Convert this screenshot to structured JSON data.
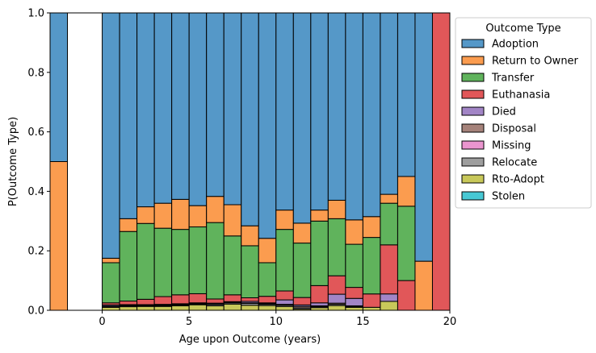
{
  "chart_data": {
    "type": "bar",
    "stacked": true,
    "normalized": true,
    "xlabel": "Age upon Outcome (years)",
    "ylabel": "P(Outcome Type)",
    "xlim": [
      -3,
      20
    ],
    "ylim": [
      0,
      1
    ],
    "xticks": [
      0,
      5,
      10,
      15,
      20
    ],
    "yticks": [
      0.0,
      0.2,
      0.4,
      0.6,
      0.8,
      1.0
    ],
    "x_tick_labels": [
      "0",
      "5",
      "10",
      "15",
      "20"
    ],
    "y_tick_labels": [
      "0.0",
      "0.2",
      "0.4",
      "0.6",
      "0.8",
      "1.0"
    ],
    "grid": false,
    "legend_title": "Outcome Type",
    "legend_position": "outside-right",
    "series_colors": [
      "#5598c8",
      "#fb9c4f",
      "#60b35c",
      "#e15759",
      "#a285c6",
      "#a5827a",
      "#ea95cf",
      "#9e9e9e",
      "#c8c85a",
      "#47c8d4"
    ],
    "bins": [
      {
        "x0": -3,
        "x1": -2
      },
      {
        "x0": 0,
        "x1": 1
      },
      {
        "x0": 1,
        "x1": 2
      },
      {
        "x0": 2,
        "x1": 3
      },
      {
        "x0": 3,
        "x1": 4
      },
      {
        "x0": 4,
        "x1": 5
      },
      {
        "x0": 5,
        "x1": 6
      },
      {
        "x0": 6,
        "x1": 7
      },
      {
        "x0": 7,
        "x1": 8
      },
      {
        "x0": 8,
        "x1": 9
      },
      {
        "x0": 9,
        "x1": 10
      },
      {
        "x0": 10,
        "x1": 11
      },
      {
        "x0": 11,
        "x1": 12
      },
      {
        "x0": 12,
        "x1": 13
      },
      {
        "x0": 13,
        "x1": 14
      },
      {
        "x0": 14,
        "x1": 15
      },
      {
        "x0": 15,
        "x1": 16
      },
      {
        "x0": 16,
        "x1": 17
      },
      {
        "x0": 17,
        "x1": 18
      },
      {
        "x0": 18,
        "x1": 19
      },
      {
        "x0": 19,
        "x1": 20
      }
    ],
    "series": [
      {
        "name": "Adoption",
        "values": [
          0.5,
          0.825,
          0.692,
          0.652,
          0.64,
          0.627,
          0.698,
          0.617,
          0.645,
          0.716,
          0.758,
          0.663,
          0.707,
          0.663,
          0.63,
          0.696,
          0.685,
          0.61,
          0.55,
          0.835,
          0.0
        ]
      },
      {
        "name": "Return to Owner",
        "values": [
          0.5,
          0.015,
          0.043,
          0.056,
          0.084,
          0.101,
          0.077,
          0.088,
          0.105,
          0.067,
          0.082,
          0.065,
          0.067,
          0.037,
          0.062,
          0.082,
          0.07,
          0.03,
          0.1,
          0.165,
          0.0
        ]
      },
      {
        "name": "Transfer",
        "values": [
          0.0,
          0.135,
          0.234,
          0.255,
          0.23,
          0.22,
          0.242,
          0.257,
          0.198,
          0.175,
          0.113,
          0.207,
          0.183,
          0.217,
          0.192,
          0.145,
          0.19,
          0.14,
          0.25,
          0.0,
          0.0
        ]
      },
      {
        "name": "Euthanasia",
        "values": [
          0.0,
          0.007,
          0.012,
          0.018,
          0.026,
          0.03,
          0.033,
          0.014,
          0.023,
          0.012,
          0.022,
          0.03,
          0.025,
          0.058,
          0.062,
          0.037,
          0.045,
          0.165,
          0.1,
          0.0,
          1.0
        ]
      },
      {
        "name": "Died",
        "values": [
          0.0,
          0.004,
          0.002,
          0.002,
          0.002,
          0.002,
          0.003,
          0.003,
          0.001,
          0.005,
          0.003,
          0.015,
          0.005,
          0.01,
          0.03,
          0.025,
          0.0,
          0.025,
          0.0,
          0.0,
          0.0
        ]
      },
      {
        "name": "Disposal",
        "values": [
          0.0,
          0.002,
          0.002,
          0.002,
          0.003,
          0.002,
          0.002,
          0.002,
          0.003,
          0.002,
          0.002,
          0.003,
          0.005,
          0.003,
          0.004,
          0.003,
          0.0,
          0.0,
          0.0,
          0.0,
          0.0
        ]
      },
      {
        "name": "Missing",
        "values": [
          0.0,
          0.0,
          0.0,
          0.0,
          0.0,
          0.0,
          0.0,
          0.0,
          0.0,
          0.0,
          0.0,
          0.0,
          0.0,
          0.0,
          0.0,
          0.0,
          0.0,
          0.0,
          0.0,
          0.0,
          0.0
        ]
      },
      {
        "name": "Relocate",
        "values": [
          0.0,
          0.002,
          0.003,
          0.002,
          0.002,
          0.003,
          0.002,
          0.004,
          0.004,
          0.006,
          0.004,
          0.004,
          0.004,
          0.003,
          0.004,
          0.002,
          0.0,
          0.0,
          0.0,
          0.0,
          0.0
        ]
      },
      {
        "name": "Rto-Adopt",
        "values": [
          0.0,
          0.01,
          0.012,
          0.013,
          0.013,
          0.015,
          0.02,
          0.015,
          0.021,
          0.017,
          0.016,
          0.013,
          0.004,
          0.009,
          0.016,
          0.01,
          0.01,
          0.03,
          0.0,
          0.0,
          0.0
        ]
      },
      {
        "name": "Stolen",
        "values": [
          0.0,
          0.0,
          0.0,
          0.0,
          0.0,
          0.0,
          0.0,
          0.0,
          0.0,
          0.0,
          0.0,
          0.0,
          0.0,
          0.0,
          0.0,
          0.0,
          0.0,
          0.0,
          0.0,
          0.0,
          0.0
        ]
      }
    ]
  }
}
